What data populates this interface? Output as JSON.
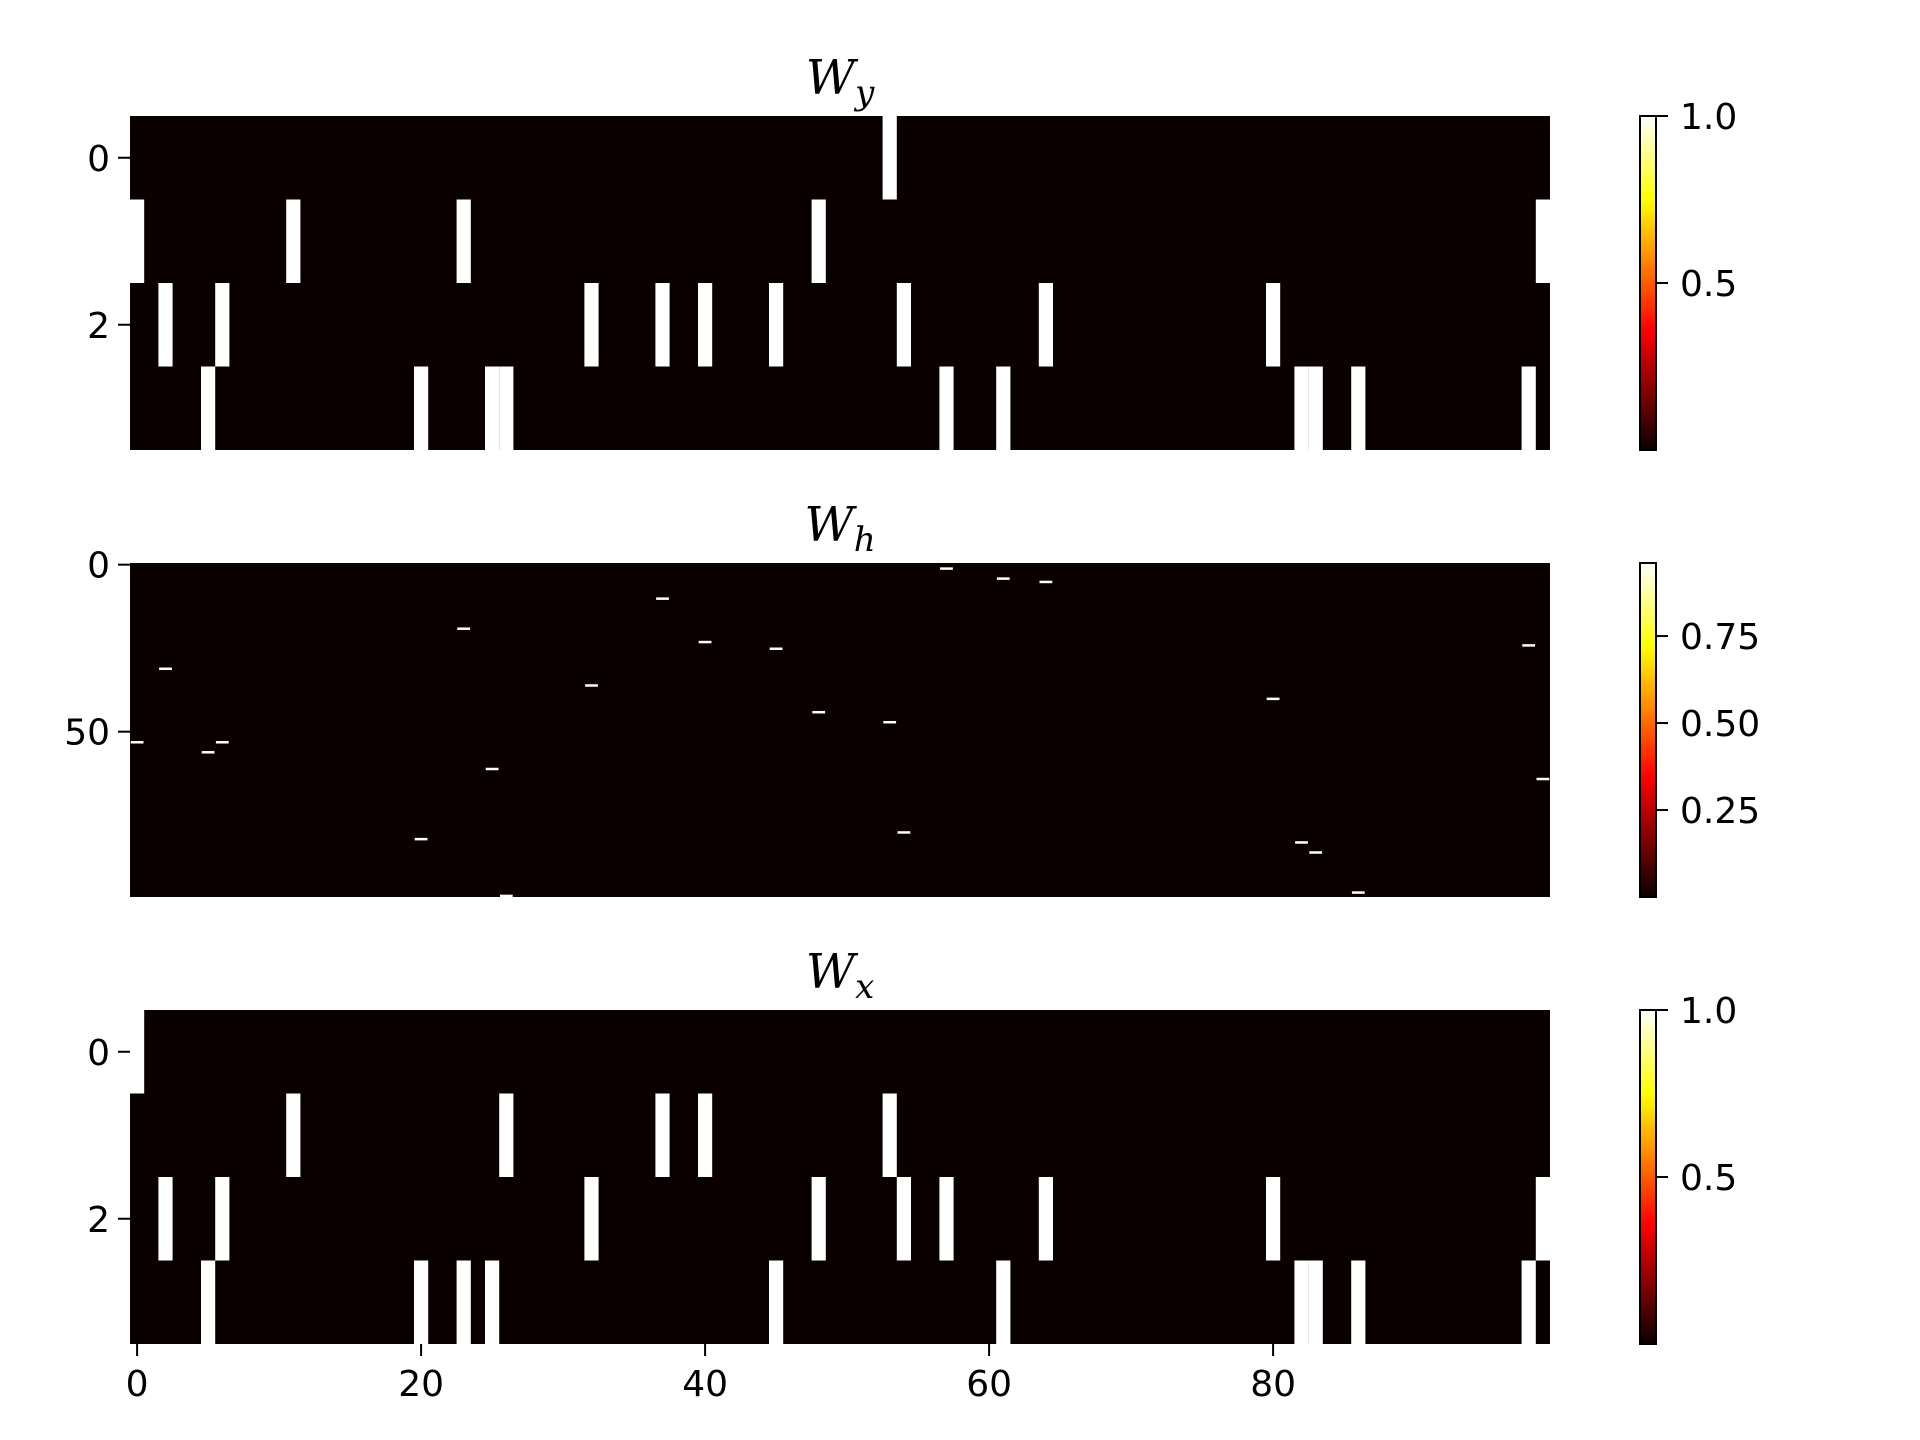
{
  "chart_data": [
    {
      "type": "heatmap",
      "title": {
        "main": "W",
        "sub": "y"
      },
      "rows": 4,
      "cols": 100,
      "active_cells": [
        [
          0,
          53
        ],
        [
          1,
          0
        ],
        [
          1,
          11
        ],
        [
          1,
          23
        ],
        [
          1,
          48
        ],
        [
          1,
          99
        ],
        [
          2,
          2
        ],
        [
          2,
          6
        ],
        [
          2,
          32
        ],
        [
          2,
          37
        ],
        [
          2,
          40
        ],
        [
          2,
          45
        ],
        [
          2,
          54
        ],
        [
          2,
          64
        ],
        [
          2,
          80
        ],
        [
          3,
          5
        ],
        [
          3,
          20
        ],
        [
          3,
          25
        ],
        [
          3,
          26
        ],
        [
          3,
          57
        ],
        [
          3,
          61
        ],
        [
          3,
          82
        ],
        [
          3,
          83
        ],
        [
          3,
          86
        ],
        [
          3,
          98
        ]
      ],
      "x_ticks": [],
      "y_ticks": [
        {
          "value": 0,
          "label": "0"
        },
        {
          "value": 2,
          "label": "2"
        }
      ],
      "colorbar": {
        "colormap": "hot",
        "min": 0,
        "max": 1.0,
        "ticks": [
          {
            "value": 0.5,
            "label": "0.5"
          },
          {
            "value": 1.0,
            "label": "1.0"
          }
        ]
      }
    },
    {
      "type": "heatmap",
      "title": {
        "main": "W",
        "sub": "h"
      },
      "rows": 100,
      "cols": 100,
      "active_cells": [
        [
          1,
          57
        ],
        [
          4,
          61
        ],
        [
          5,
          64
        ],
        [
          10,
          37
        ],
        [
          19,
          23
        ],
        [
          23,
          40
        ],
        [
          24,
          98
        ],
        [
          25,
          45
        ],
        [
          31,
          2
        ],
        [
          36,
          32
        ],
        [
          40,
          80
        ],
        [
          44,
          48
        ],
        [
          47,
          53
        ],
        [
          53,
          0
        ],
        [
          53,
          6
        ],
        [
          56,
          5
        ],
        [
          61,
          25
        ],
        [
          64,
          99
        ],
        [
          80,
          54
        ],
        [
          82,
          20
        ],
        [
          83,
          82
        ],
        [
          86,
          83
        ],
        [
          98,
          86
        ],
        [
          99,
          26
        ]
      ],
      "x_ticks": [],
      "y_ticks": [
        {
          "value": 0,
          "label": "0"
        },
        {
          "value": 50,
          "label": "50"
        }
      ],
      "colorbar": {
        "colormap": "hot",
        "min": 0,
        "max": 0.96,
        "ticks": [
          {
            "value": 0.25,
            "label": "0.25"
          },
          {
            "value": 0.5,
            "label": "0.50"
          },
          {
            "value": 0.75,
            "label": "0.75"
          }
        ]
      }
    },
    {
      "type": "heatmap",
      "title": {
        "main": "W",
        "sub": "x"
      },
      "rows": 4,
      "cols": 100,
      "active_cells": [
        [
          0,
          0
        ],
        [
          1,
          11
        ],
        [
          1,
          26
        ],
        [
          1,
          37
        ],
        [
          1,
          40
        ],
        [
          1,
          53
        ],
        [
          2,
          2
        ],
        [
          2,
          6
        ],
        [
          2,
          32
        ],
        [
          2,
          48
        ],
        [
          2,
          54
        ],
        [
          2,
          57
        ],
        [
          2,
          64
        ],
        [
          2,
          80
        ],
        [
          2,
          99
        ],
        [
          3,
          5
        ],
        [
          3,
          20
        ],
        [
          3,
          23
        ],
        [
          3,
          25
        ],
        [
          3,
          45
        ],
        [
          3,
          61
        ],
        [
          3,
          82
        ],
        [
          3,
          83
        ],
        [
          3,
          86
        ],
        [
          3,
          98
        ]
      ],
      "x_ticks": [
        {
          "value": 0,
          "label": "0"
        },
        {
          "value": 20,
          "label": "20"
        },
        {
          "value": 40,
          "label": "40"
        },
        {
          "value": 60,
          "label": "60"
        },
        {
          "value": 80,
          "label": "80"
        }
      ],
      "y_ticks": [
        {
          "value": 0,
          "label": "0"
        },
        {
          "value": 2,
          "label": "2"
        }
      ],
      "colorbar": {
        "colormap": "hot",
        "min": 0,
        "max": 1.0,
        "ticks": [
          {
            "value": 0.5,
            "label": "0.5"
          },
          {
            "value": 1.0,
            "label": "1.0"
          }
        ]
      }
    }
  ]
}
